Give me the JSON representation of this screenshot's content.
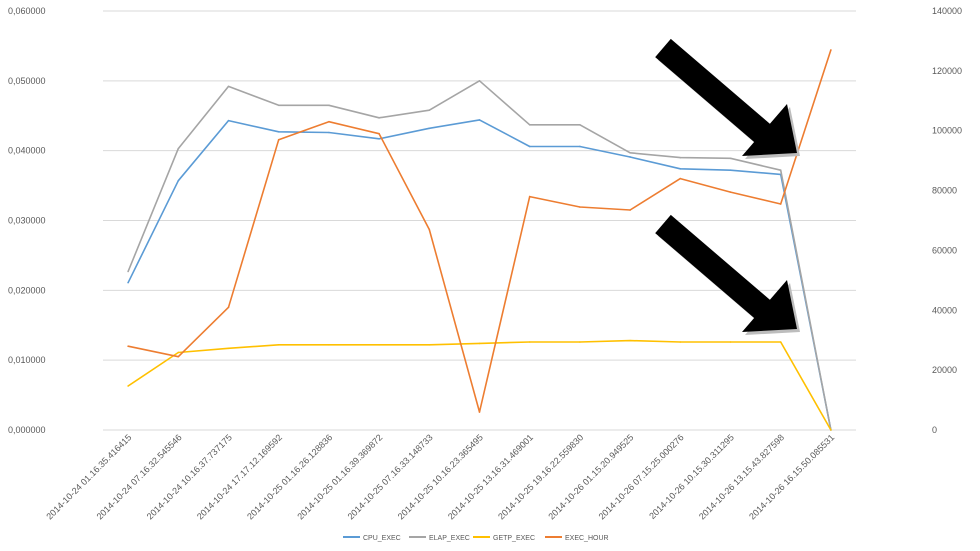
{
  "chart_data": {
    "type": "line",
    "grid": true,
    "legend_position": "bottom",
    "categories": [
      "2014-10-24 01.16.35.416415",
      "2014-10-24 07.16.32.545546",
      "2014-10-24 10.16.37.737175",
      "2014-10-24 17.17.12.169592",
      "2014-10-25 01.16.26.128836",
      "2014-10-25 01.16.39.369872",
      "2014-10-25 07.16.33.148733",
      "2014-10-25 10.16.23.365495",
      "2014-10-25 13.16.31.469001",
      "2014-10-25 19.16.22.559830",
      "2014-10-26 01.15.20.949525",
      "2014-10-26 07.15.25.000276",
      "2014-10-26 10.15.30.311295",
      "2014-10-26 13.15.43.827598",
      "2014-10-26 16.15.50.085531"
    ],
    "y_left": {
      "lim": [
        0,
        0.06
      ],
      "ticks": [
        0,
        0.01,
        0.02,
        0.03,
        0.04,
        0.05,
        0.06
      ],
      "tick_labels": [
        "0,000000",
        "0,010000",
        "0,020000",
        "0,030000",
        "0,040000",
        "0,050000",
        "0,060000"
      ]
    },
    "y_right": {
      "lim": [
        0,
        140000
      ],
      "ticks": [
        0,
        20000,
        40000,
        60000,
        80000,
        100000,
        120000,
        140000
      ],
      "tick_labels": [
        "0",
        "20000",
        "40000",
        "60000",
        "80000",
        "100000",
        "120000",
        "140000"
      ]
    },
    "series": [
      {
        "name": "CPU_EXEC",
        "axis": "left",
        "color": "#5b9bd5",
        "values": [
          0.0211,
          0.0357,
          0.0443,
          0.0427,
          0.0426,
          0.0417,
          0.0432,
          0.0444,
          0.0406,
          0.0406,
          0.0391,
          0.0374,
          0.0372,
          0.0366,
          0.0
        ]
      },
      {
        "name": "ELAP_EXEC",
        "axis": "left",
        "color": "#a5a5a5",
        "values": [
          0.0227,
          0.0403,
          0.0492,
          0.0465,
          0.0465,
          0.0447,
          0.0458,
          0.05,
          0.0437,
          0.0437,
          0.0397,
          0.039,
          0.0389,
          0.0372,
          0.0
        ]
      },
      {
        "name": "GETP_EXEC",
        "axis": "left",
        "color": "#ffc000",
        "values": [
          0.0063,
          0.0111,
          0.0117,
          0.0122,
          0.0122,
          0.0122,
          0.0122,
          0.0124,
          0.0126,
          0.0126,
          0.0128,
          0.0126,
          0.0126,
          0.0126,
          0.0
        ]
      },
      {
        "name": "EXEC_HOUR",
        "axis": "right",
        "color": "#ed7d31",
        "values": [
          28000,
          24500,
          41000,
          97000,
          103000,
          99000,
          67000,
          6000,
          78000,
          74500,
          73500,
          84000,
          79500,
          75500,
          127000
        ]
      }
    ]
  }
}
